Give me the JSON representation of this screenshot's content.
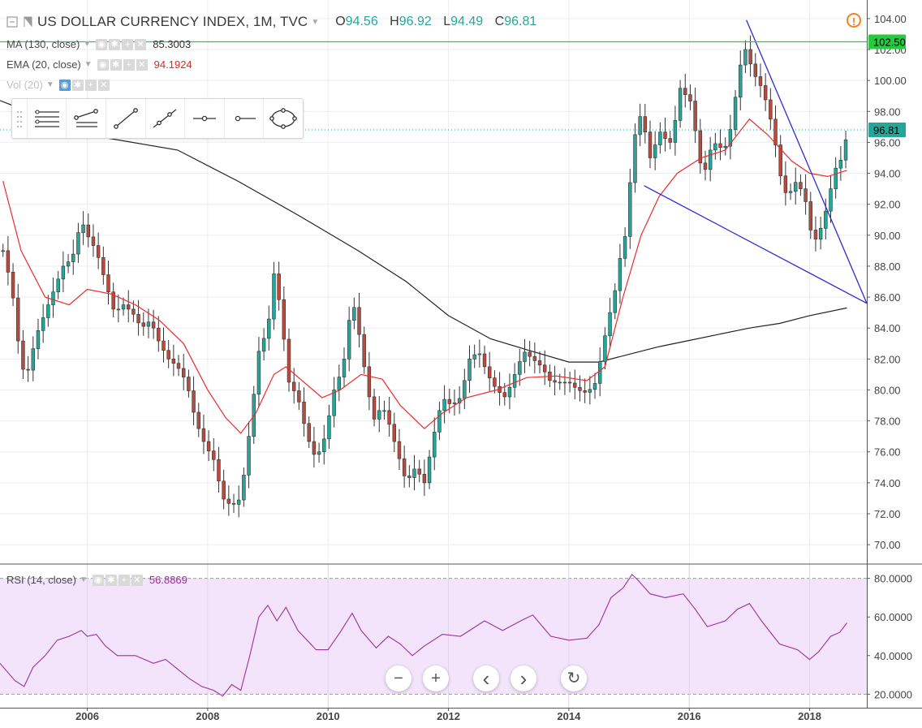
{
  "header": {
    "title": "US DOLLAR CURRENCY INDEX, 1M, TVC",
    "open_label": "O",
    "open": "94.56",
    "high_label": "H",
    "high": "96.92",
    "low_label": "L",
    "low": "94.49",
    "close_label": "C",
    "close": "96.81"
  },
  "indicators": {
    "ma": {
      "label": "MA (130, close)",
      "value": "85.3003"
    },
    "ema": {
      "label": "EMA (20, close)",
      "value": "94.1924"
    },
    "vol": {
      "label": "Vol (20)"
    },
    "rsi": {
      "label": "RSI (14, close)",
      "value": "56.8869"
    }
  },
  "colors": {
    "up": "#26a69a",
    "down": "#b94a3e",
    "ema": "#ee2a2a",
    "ma": "#222222",
    "trend": "#2b2bd8",
    "hline": "#27c93f",
    "rsi_line": "#9b2f9e",
    "rsi_band": "#f3e4fb"
  },
  "icons": {
    "toolbar": [
      "grip-icon",
      "horizontal-lines-icon",
      "trend-angle-icon",
      "trend-line-icon",
      "ray-icon",
      "horizontal-ray-icon",
      "horizontal-line-icon",
      "ellipse-icon"
    ],
    "alert": "alert-icon",
    "zoom_out": "−",
    "zoom_in": "+",
    "scroll_left": "‹",
    "scroll_right": "›",
    "reset": "↻"
  },
  "chart_data": {
    "type": "candlestick",
    "symbol": "US DOLLAR CURRENCY INDEX",
    "interval": "1M",
    "x_ticks": [
      "2006",
      "2008",
      "2010",
      "2012",
      "2014",
      "2016",
      "2018"
    ],
    "x_tick_years": [
      2006,
      2008,
      2010,
      2012,
      2014,
      2016,
      2018
    ],
    "xlim": [
      2004.55,
      2018.95
    ],
    "price_axis": {
      "ticks": [
        "104.00",
        "102.00",
        "100.00",
        "98.00",
        "96.00",
        "94.00",
        "92.00",
        "90.00",
        "88.00",
        "86.00",
        "84.00",
        "82.00",
        "80.00",
        "78.00",
        "76.00",
        "74.00",
        "72.00",
        "70.00"
      ],
      "ylim": [
        68.8,
        105.2
      ]
    },
    "price_labels": [
      {
        "value": 102.5,
        "text": "102.50",
        "kind": "horizontal-line"
      },
      {
        "value": 96.81,
        "text": "96.81",
        "kind": "last-price"
      }
    ],
    "close_anchors": [
      [
        2004.6,
        89.0
      ],
      [
        2004.75,
        86.5
      ],
      [
        2004.9,
        81.5
      ],
      [
        2005.0,
        81.0
      ],
      [
        2005.15,
        83.5
      ],
      [
        2005.3,
        85.0
      ],
      [
        2005.45,
        86.5
      ],
      [
        2005.6,
        88.0
      ],
      [
        2005.75,
        88.5
      ],
      [
        2005.9,
        91.0
      ],
      [
        2006.0,
        90.0
      ],
      [
        2006.15,
        89.0
      ],
      [
        2006.3,
        87.0
      ],
      [
        2006.45,
        85.0
      ],
      [
        2006.6,
        85.5
      ],
      [
        2006.75,
        85.0
      ],
      [
        2006.9,
        84.0
      ],
      [
        2007.05,
        84.5
      ],
      [
        2007.2,
        83.0
      ],
      [
        2007.35,
        82.0
      ],
      [
        2007.5,
        81.5
      ],
      [
        2007.65,
        80.5
      ],
      [
        2007.8,
        78.0
      ],
      [
        2007.95,
        76.5
      ],
      [
        2008.1,
        75.5
      ],
      [
        2008.25,
        73.0
      ],
      [
        2008.4,
        72.5
      ],
      [
        2008.55,
        73.0
      ],
      [
        2008.7,
        77.5
      ],
      [
        2008.85,
        82.5
      ],
      [
        2009.0,
        84.0
      ],
      [
        2009.1,
        87.5
      ],
      [
        2009.2,
        85.5
      ],
      [
        2009.35,
        80.5
      ],
      [
        2009.5,
        79.5
      ],
      [
        2009.65,
        77.0
      ],
      [
        2009.8,
        75.5
      ],
      [
        2009.95,
        77.0
      ],
      [
        2010.1,
        80.0
      ],
      [
        2010.25,
        81.5
      ],
      [
        2010.4,
        86.0
      ],
      [
        2010.5,
        84.0
      ],
      [
        2010.6,
        81.5
      ],
      [
        2010.75,
        78.0
      ],
      [
        2010.9,
        79.0
      ],
      [
        2011.0,
        78.0
      ],
      [
        2011.15,
        76.0
      ],
      [
        2011.3,
        74.0
      ],
      [
        2011.45,
        75.0
      ],
      [
        2011.6,
        74.0
      ],
      [
        2011.75,
        77.0
      ],
      [
        2011.9,
        79.5
      ],
      [
        2012.05,
        79.0
      ],
      [
        2012.2,
        79.5
      ],
      [
        2012.35,
        82.0
      ],
      [
        2012.5,
        82.5
      ],
      [
        2012.65,
        81.0
      ],
      [
        2012.8,
        80.0
      ],
      [
        2012.95,
        79.5
      ],
      [
        2013.1,
        81.0
      ],
      [
        2013.25,
        82.5
      ],
      [
        2013.4,
        82.0
      ],
      [
        2013.55,
        81.5
      ],
      [
        2013.7,
        80.5
      ],
      [
        2013.85,
        80.5
      ],
      [
        2014.0,
        80.5
      ],
      [
        2014.15,
        80.0
      ],
      [
        2014.3,
        79.8
      ],
      [
        2014.45,
        80.5
      ],
      [
        2014.55,
        82.5
      ],
      [
        2014.65,
        84.5
      ],
      [
        2014.75,
        86.0
      ],
      [
        2014.85,
        88.5
      ],
      [
        2014.95,
        90.2
      ],
      [
        2015.05,
        95.0
      ],
      [
        2015.15,
        98.0
      ],
      [
        2015.25,
        97.0
      ],
      [
        2015.35,
        95.0
      ],
      [
        2015.45,
        96.0
      ],
      [
        2015.55,
        97.0
      ],
      [
        2015.65,
        95.5
      ],
      [
        2015.75,
        97.0
      ],
      [
        2015.85,
        99.5
      ],
      [
        2015.95,
        99.0
      ],
      [
        2016.05,
        98.5
      ],
      [
        2016.15,
        95.0
      ],
      [
        2016.25,
        94.0
      ],
      [
        2016.35,
        95.5
      ],
      [
        2016.45,
        96.0
      ],
      [
        2016.55,
        95.5
      ],
      [
        2016.65,
        96.0
      ],
      [
        2016.75,
        98.5
      ],
      [
        2016.85,
        101.0
      ],
      [
        2016.95,
        102.2
      ],
      [
        2017.05,
        100.5
      ],
      [
        2017.15,
        100.0
      ],
      [
        2017.25,
        99.0
      ],
      [
        2017.35,
        97.5
      ],
      [
        2017.45,
        95.5
      ],
      [
        2017.55,
        93.0
      ],
      [
        2017.65,
        92.5
      ],
      [
        2017.75,
        93.5
      ],
      [
        2017.85,
        93.0
      ],
      [
        2017.95,
        92.0
      ],
      [
        2018.05,
        89.5
      ],
      [
        2018.15,
        90.0
      ],
      [
        2018.3,
        92.0
      ],
      [
        2018.4,
        94.0
      ],
      [
        2018.5,
        95.0
      ],
      [
        2018.55,
        94.56
      ],
      [
        2018.62,
        96.81
      ]
    ],
    "ema20_anchors": [
      [
        2004.6,
        93.5
      ],
      [
        2004.9,
        89.0
      ],
      [
        2005.3,
        86.0
      ],
      [
        2005.7,
        85.5
      ],
      [
        2006.0,
        86.5
      ],
      [
        2006.4,
        86.2
      ],
      [
        2006.8,
        85.5
      ],
      [
        2007.2,
        84.5
      ],
      [
        2007.6,
        83.0
      ],
      [
        2008.0,
        80.0
      ],
      [
        2008.3,
        78.2
      ],
      [
        2008.55,
        77.2
      ],
      [
        2008.8,
        78.5
      ],
      [
        2009.1,
        81.0
      ],
      [
        2009.3,
        81.5
      ],
      [
        2009.6,
        80.5
      ],
      [
        2009.9,
        79.5
      ],
      [
        2010.2,
        80.0
      ],
      [
        2010.55,
        81.0
      ],
      [
        2010.9,
        80.7
      ],
      [
        2011.2,
        79.0
      ],
      [
        2011.6,
        77.5
      ],
      [
        2011.9,
        78.5
      ],
      [
        2012.3,
        79.5
      ],
      [
        2012.8,
        80.0
      ],
      [
        2013.3,
        80.8
      ],
      [
        2013.8,
        80.9
      ],
      [
        2014.3,
        80.6
      ],
      [
        2014.6,
        81.5
      ],
      [
        2014.9,
        86.0
      ],
      [
        2015.2,
        90.0
      ],
      [
        2015.5,
        92.5
      ],
      [
        2015.8,
        94.0
      ],
      [
        2016.2,
        95.0
      ],
      [
        2016.6,
        95.5
      ],
      [
        2017.0,
        97.5
      ],
      [
        2017.3,
        96.5
      ],
      [
        2017.7,
        94.8
      ],
      [
        2018.0,
        94.0
      ],
      [
        2018.3,
        93.8
      ],
      [
        2018.62,
        94.19
      ]
    ],
    "ma130_anchors": [
      [
        2004.55,
        98.7
      ],
      [
        2006.0,
        96.5
      ],
      [
        2007.5,
        95.5
      ],
      [
        2008.5,
        93.5
      ],
      [
        2009.5,
        91.3
      ],
      [
        2010.5,
        89.0
      ],
      [
        2011.3,
        87.0
      ],
      [
        2012.0,
        84.8
      ],
      [
        2012.7,
        83.3
      ],
      [
        2013.3,
        82.6
      ],
      [
        2014.0,
        81.8
      ],
      [
        2014.5,
        81.8
      ],
      [
        2015.0,
        82.3
      ],
      [
        2015.5,
        82.8
      ],
      [
        2016.0,
        83.2
      ],
      [
        2016.5,
        83.6
      ],
      [
        2017.0,
        84.0
      ],
      [
        2017.5,
        84.3
      ],
      [
        2018.0,
        84.8
      ],
      [
        2018.62,
        85.3
      ]
    ],
    "trendlines": [
      {
        "from": [
          2015.25,
          93.2
        ],
        "to": [
          2018.95,
          85.6
        ]
      },
      {
        "from": [
          2016.95,
          103.9
        ],
        "to": [
          2018.95,
          85.6
        ]
      }
    ],
    "horizontal_line": 102.5,
    "rsi": {
      "ticks": [
        "80.0000",
        "60.0000",
        "40.0000",
        "20.0000"
      ],
      "ylim": [
        13,
        87
      ],
      "band": [
        20,
        80
      ],
      "anchors": [
        [
          2004.55,
          36
        ],
        [
          2004.8,
          27
        ],
        [
          2004.95,
          24
        ],
        [
          2005.1,
          34
        ],
        [
          2005.3,
          40
        ],
        [
          2005.5,
          48
        ],
        [
          2005.7,
          50
        ],
        [
          2005.9,
          53
        ],
        [
          2006.0,
          50
        ],
        [
          2006.15,
          51
        ],
        [
          2006.3,
          45
        ],
        [
          2006.5,
          40
        ],
        [
          2006.8,
          40
        ],
        [
          2007.1,
          36
        ],
        [
          2007.3,
          38
        ],
        [
          2007.5,
          33
        ],
        [
          2007.7,
          28
        ],
        [
          2007.9,
          24
        ],
        [
          2008.1,
          22
        ],
        [
          2008.25,
          19
        ],
        [
          2008.4,
          25
        ],
        [
          2008.55,
          22
        ],
        [
          2008.7,
          40
        ],
        [
          2008.85,
          60
        ],
        [
          2009.0,
          66
        ],
        [
          2009.15,
          58
        ],
        [
          2009.3,
          65
        ],
        [
          2009.5,
          53
        ],
        [
          2009.8,
          43
        ],
        [
          2010.0,
          43
        ],
        [
          2010.2,
          52
        ],
        [
          2010.4,
          62
        ],
        [
          2010.55,
          53
        ],
        [
          2010.8,
          44
        ],
        [
          2011.0,
          50
        ],
        [
          2011.2,
          46
        ],
        [
          2011.4,
          40
        ],
        [
          2011.6,
          45
        ],
        [
          2011.9,
          51
        ],
        [
          2012.2,
          50
        ],
        [
          2012.4,
          54
        ],
        [
          2012.6,
          58
        ],
        [
          2012.9,
          53
        ],
        [
          2013.2,
          58
        ],
        [
          2013.4,
          61
        ],
        [
          2013.7,
          50
        ],
        [
          2014.0,
          48
        ],
        [
          2014.3,
          49
        ],
        [
          2014.5,
          56
        ],
        [
          2014.7,
          70
        ],
        [
          2014.9,
          75
        ],
        [
          2015.05,
          82
        ],
        [
          2015.15,
          79
        ],
        [
          2015.35,
          72
        ],
        [
          2015.6,
          70
        ],
        [
          2015.9,
          72
        ],
        [
          2016.1,
          64
        ],
        [
          2016.3,
          55
        ],
        [
          2016.6,
          58
        ],
        [
          2016.8,
          64
        ],
        [
          2017.0,
          67
        ],
        [
          2017.2,
          58
        ],
        [
          2017.5,
          46
        ],
        [
          2017.8,
          43
        ],
        [
          2018.0,
          38
        ],
        [
          2018.15,
          42
        ],
        [
          2018.35,
          50
        ],
        [
          2018.5,
          52
        ],
        [
          2018.62,
          56.9
        ]
      ]
    }
  }
}
